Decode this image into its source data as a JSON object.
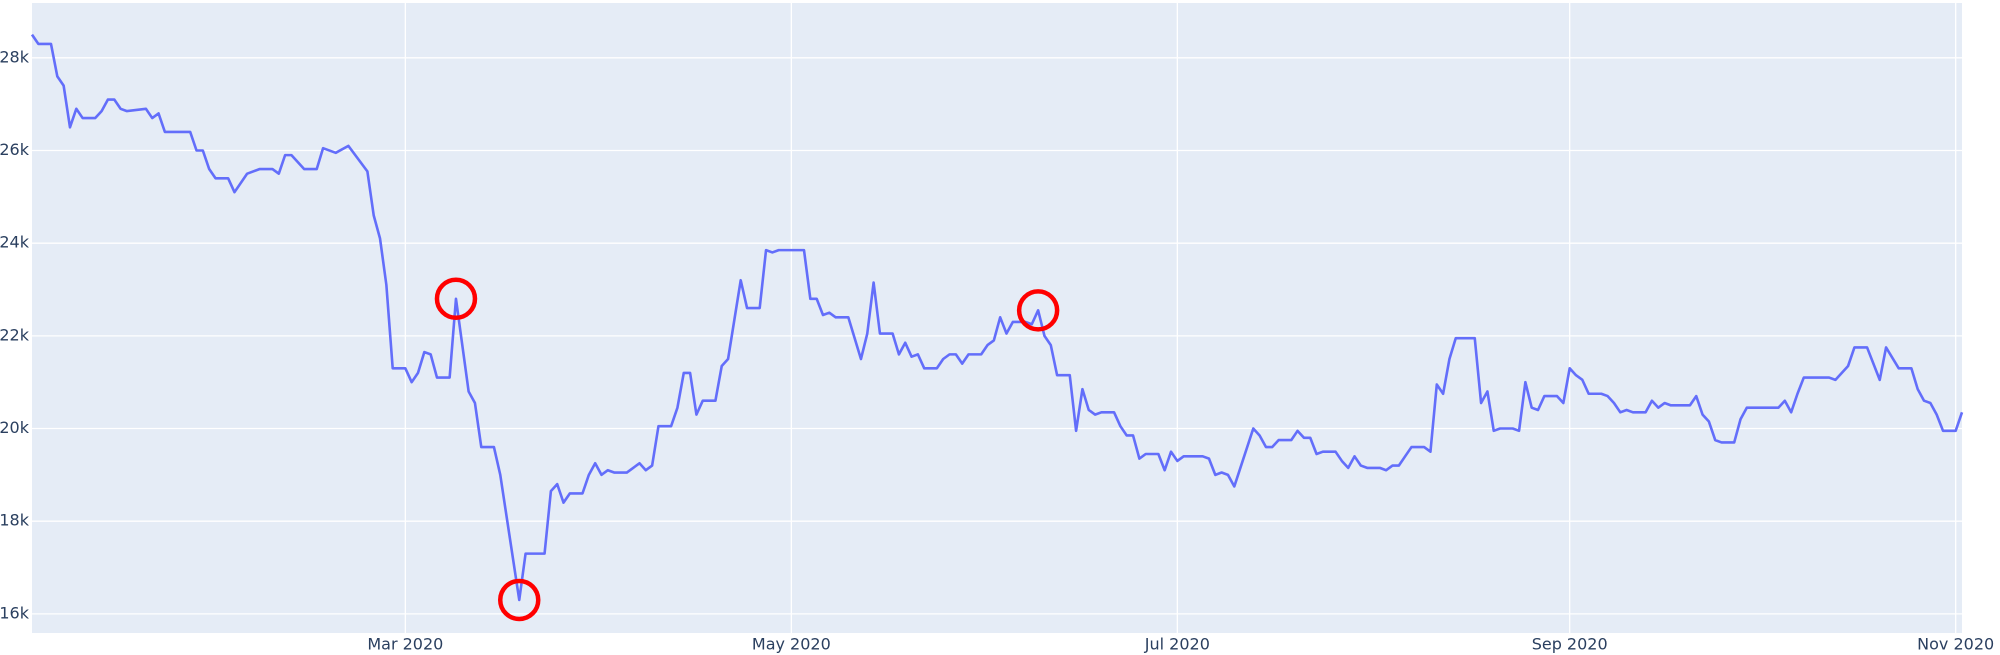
{
  "chart_data": {
    "type": "line",
    "x": [
      "2020-01-02",
      "2020-01-03",
      "2020-01-05",
      "2020-01-06",
      "2020-01-07",
      "2020-01-08",
      "2020-01-09",
      "2020-01-10",
      "2020-01-12",
      "2020-01-13",
      "2020-01-14",
      "2020-01-15",
      "2020-01-16",
      "2020-01-17",
      "2020-01-20",
      "2020-01-21",
      "2020-01-22",
      "2020-01-23",
      "2020-01-27",
      "2020-01-28",
      "2020-01-29",
      "2020-01-30",
      "2020-01-31",
      "2020-02-02",
      "2020-02-03",
      "2020-02-05",
      "2020-02-07",
      "2020-02-09",
      "2020-02-10",
      "2020-02-11",
      "2020-02-12",
      "2020-02-14",
      "2020-02-16",
      "2020-02-17",
      "2020-02-19",
      "2020-02-21",
      "2020-02-24",
      "2020-02-25",
      "2020-02-26",
      "2020-02-27",
      "2020-02-28",
      "2020-03-01",
      "2020-03-02",
      "2020-03-03",
      "2020-03-04",
      "2020-03-05",
      "2020-03-06",
      "2020-03-08",
      "2020-03-09",
      "2020-03-11",
      "2020-03-12",
      "2020-03-13",
      "2020-03-15",
      "2020-03-16",
      "2020-03-19",
      "2020-03-20",
      "2020-03-23",
      "2020-03-24",
      "2020-03-25",
      "2020-03-26",
      "2020-03-27",
      "2020-03-29",
      "2020-03-30",
      "2020-03-31",
      "2020-04-01",
      "2020-04-02",
      "2020-04-03",
      "2020-04-05",
      "2020-04-06",
      "2020-04-07",
      "2020-04-08",
      "2020-04-09",
      "2020-04-10",
      "2020-04-12",
      "2020-04-13",
      "2020-04-14",
      "2020-04-15",
      "2020-04-16",
      "2020-04-17",
      "2020-04-19",
      "2020-04-20",
      "2020-04-21",
      "2020-04-22",
      "2020-04-23",
      "2020-04-24",
      "2020-04-26",
      "2020-04-27",
      "2020-04-28",
      "2020-04-29",
      "2020-05-03",
      "2020-05-04",
      "2020-05-05",
      "2020-05-06",
      "2020-05-07",
      "2020-05-08",
      "2020-05-10",
      "2020-05-12",
      "2020-05-13",
      "2020-05-14",
      "2020-05-15",
      "2020-05-17",
      "2020-05-18",
      "2020-05-19",
      "2020-05-20",
      "2020-05-21",
      "2020-05-22",
      "2020-05-24",
      "2020-05-25",
      "2020-05-26",
      "2020-05-27",
      "2020-05-28",
      "2020-05-29",
      "2020-05-31",
      "2020-06-01",
      "2020-06-02",
      "2020-06-03",
      "2020-06-04",
      "2020-06-05",
      "2020-06-07",
      "2020-06-08",
      "2020-06-09",
      "2020-06-10",
      "2020-06-11",
      "2020-06-12",
      "2020-06-14",
      "2020-06-15",
      "2020-06-16",
      "2020-06-17",
      "2020-06-18",
      "2020-06-19",
      "2020-06-21",
      "2020-06-22",
      "2020-06-23",
      "2020-06-24",
      "2020-06-25",
      "2020-06-26",
      "2020-06-28",
      "2020-06-29",
      "2020-06-30",
      "2020-07-01",
      "2020-07-02",
      "2020-07-03",
      "2020-07-05",
      "2020-07-06",
      "2020-07-07",
      "2020-07-08",
      "2020-07-09",
      "2020-07-10",
      "2020-07-13",
      "2020-07-14",
      "2020-07-15",
      "2020-07-16",
      "2020-07-17",
      "2020-07-19",
      "2020-07-20",
      "2020-07-21",
      "2020-07-22",
      "2020-07-23",
      "2020-07-24",
      "2020-07-26",
      "2020-07-27",
      "2020-07-28",
      "2020-07-29",
      "2020-07-30",
      "2020-07-31",
      "2020-08-02",
      "2020-08-03",
      "2020-08-04",
      "2020-08-05",
      "2020-08-06",
      "2020-08-07",
      "2020-08-09",
      "2020-08-10",
      "2020-08-11",
      "2020-08-12",
      "2020-08-13",
      "2020-08-14",
      "2020-08-17",
      "2020-08-18",
      "2020-08-19",
      "2020-08-20",
      "2020-08-21",
      "2020-08-23",
      "2020-08-24",
      "2020-08-25",
      "2020-08-26",
      "2020-08-27",
      "2020-08-28",
      "2020-08-30",
      "2020-08-31",
      "2020-09-01",
      "2020-09-02",
      "2020-09-03",
      "2020-09-04",
      "2020-09-06",
      "2020-09-07",
      "2020-09-08",
      "2020-09-09",
      "2020-09-10",
      "2020-09-11",
      "2020-09-13",
      "2020-09-14",
      "2020-09-15",
      "2020-09-16",
      "2020-09-17",
      "2020-09-18",
      "2020-09-20",
      "2020-09-21",
      "2020-09-22",
      "2020-09-23",
      "2020-09-24",
      "2020-09-25",
      "2020-09-27",
      "2020-09-28",
      "2020-09-29",
      "2020-09-30",
      "2020-10-04",
      "2020-10-05",
      "2020-10-06",
      "2020-10-07",
      "2020-10-08",
      "2020-10-12",
      "2020-10-13",
      "2020-10-15",
      "2020-10-16",
      "2020-10-18",
      "2020-10-20",
      "2020-10-21",
      "2020-10-23",
      "2020-10-25",
      "2020-10-26",
      "2020-10-27",
      "2020-10-28",
      "2020-10-29",
      "2020-10-30",
      "2020-11-01",
      "2020-11-02"
    ],
    "series": [
      {
        "color": "#636efa",
        "values": [
          28500,
          28300,
          28300,
          27600,
          27400,
          26500,
          26900,
          26700,
          26700,
          26850,
          27100,
          27100,
          26900,
          26850,
          26900,
          26700,
          26800,
          26400,
          26400,
          26000,
          26000,
          25600,
          25400,
          25400,
          25100,
          25500,
          25600,
          25600,
          25500,
          25900,
          25900,
          25600,
          25600,
          26050,
          25950,
          26100,
          25550,
          24600,
          24100,
          23100,
          21300,
          21300,
          21000,
          21200,
          21650,
          21600,
          21100,
          21100,
          22800,
          20800,
          20550,
          19600,
          19600,
          19000,
          16300,
          17300,
          17300,
          18650,
          18800,
          18400,
          18600,
          18600,
          19000,
          19250,
          19000,
          19100,
          19050,
          19050,
          19150,
          19250,
          19100,
          19200,
          20050,
          20050,
          20450,
          21200,
          21200,
          20300,
          20600,
          20600,
          21350,
          21500,
          22350,
          23200,
          22600,
          22600,
          23850,
          23800,
          23850,
          23850,
          22800,
          22800,
          22450,
          22500,
          22400,
          22400,
          21500,
          22050,
          23150,
          22050,
          22050,
          21600,
          21850,
          21550,
          21600,
          21300,
          21300,
          21500,
          21600,
          21600,
          21400,
          21600,
          21600,
          21800,
          21900,
          22400,
          22050,
          22300,
          22300,
          22250,
          22550,
          22000,
          21800,
          21150,
          21150,
          19950,
          20850,
          20400,
          20300,
          20350,
          20350,
          20050,
          19850,
          19850,
          19350,
          19450,
          19450,
          19100,
          19500,
          19300,
          19400,
          19400,
          19400,
          19350,
          19000,
          19050,
          19000,
          18750,
          20000,
          19850,
          19600,
          19600,
          19750,
          19750,
          19950,
          19800,
          19800,
          19450,
          19500,
          19500,
          19300,
          19150,
          19400,
          19200,
          19150,
          19150,
          19100,
          19200,
          19200,
          19400,
          19600,
          19600,
          19500,
          20950,
          20750,
          21500,
          21950,
          21950,
          20550,
          20800,
          19950,
          20000,
          20000,
          19950,
          21000,
          20450,
          20400,
          20700,
          20700,
          20550,
          21300,
          21150,
          21050,
          20750,
          20750,
          20700,
          20550,
          20350,
          20400,
          20350,
          20350,
          20600,
          20450,
          20550,
          20500,
          20500,
          20500,
          20700,
          20300,
          20150,
          19750,
          19700,
          19700,
          20200,
          20450,
          20450,
          20450,
          20600,
          20350,
          20750,
          21100,
          21100,
          21050,
          21350,
          21750,
          21750,
          21050,
          21750,
          21300,
          21300,
          20850,
          20600,
          20550,
          20300,
          19950,
          19950,
          20350
        ]
      }
    ],
    "markers": {
      "color": "#ff0000",
      "x": [
        "2020-03-09",
        "2020-03-19",
        "2020-06-09"
      ],
      "values": [
        22800,
        16300,
        22550
      ]
    },
    "xlim": [
      "2020-01-02",
      "2020-11-02"
    ],
    "xticks": [
      {
        "value": "2020-03-01",
        "label": "Mar 2020"
      },
      {
        "value": "2020-05-01",
        "label": "May 2020"
      },
      {
        "value": "2020-07-01",
        "label": "Jul 2020"
      },
      {
        "value": "2020-09-01",
        "label": "Sep 2020"
      },
      {
        "value": "2020-11-01",
        "label": "Nov 2020"
      }
    ],
    "ylim": [
      15587,
      29183
    ],
    "yticks": [
      {
        "value": 16000,
        "label": "16k"
      },
      {
        "value": 18000,
        "label": "18k"
      },
      {
        "value": 20000,
        "label": "20k"
      },
      {
        "value": 22000,
        "label": "22k"
      },
      {
        "value": 24000,
        "label": "24k"
      },
      {
        "value": 26000,
        "label": "26k"
      },
      {
        "value": 28000,
        "label": "28k"
      }
    ],
    "grid": true,
    "background": "#e5ecf6"
  }
}
